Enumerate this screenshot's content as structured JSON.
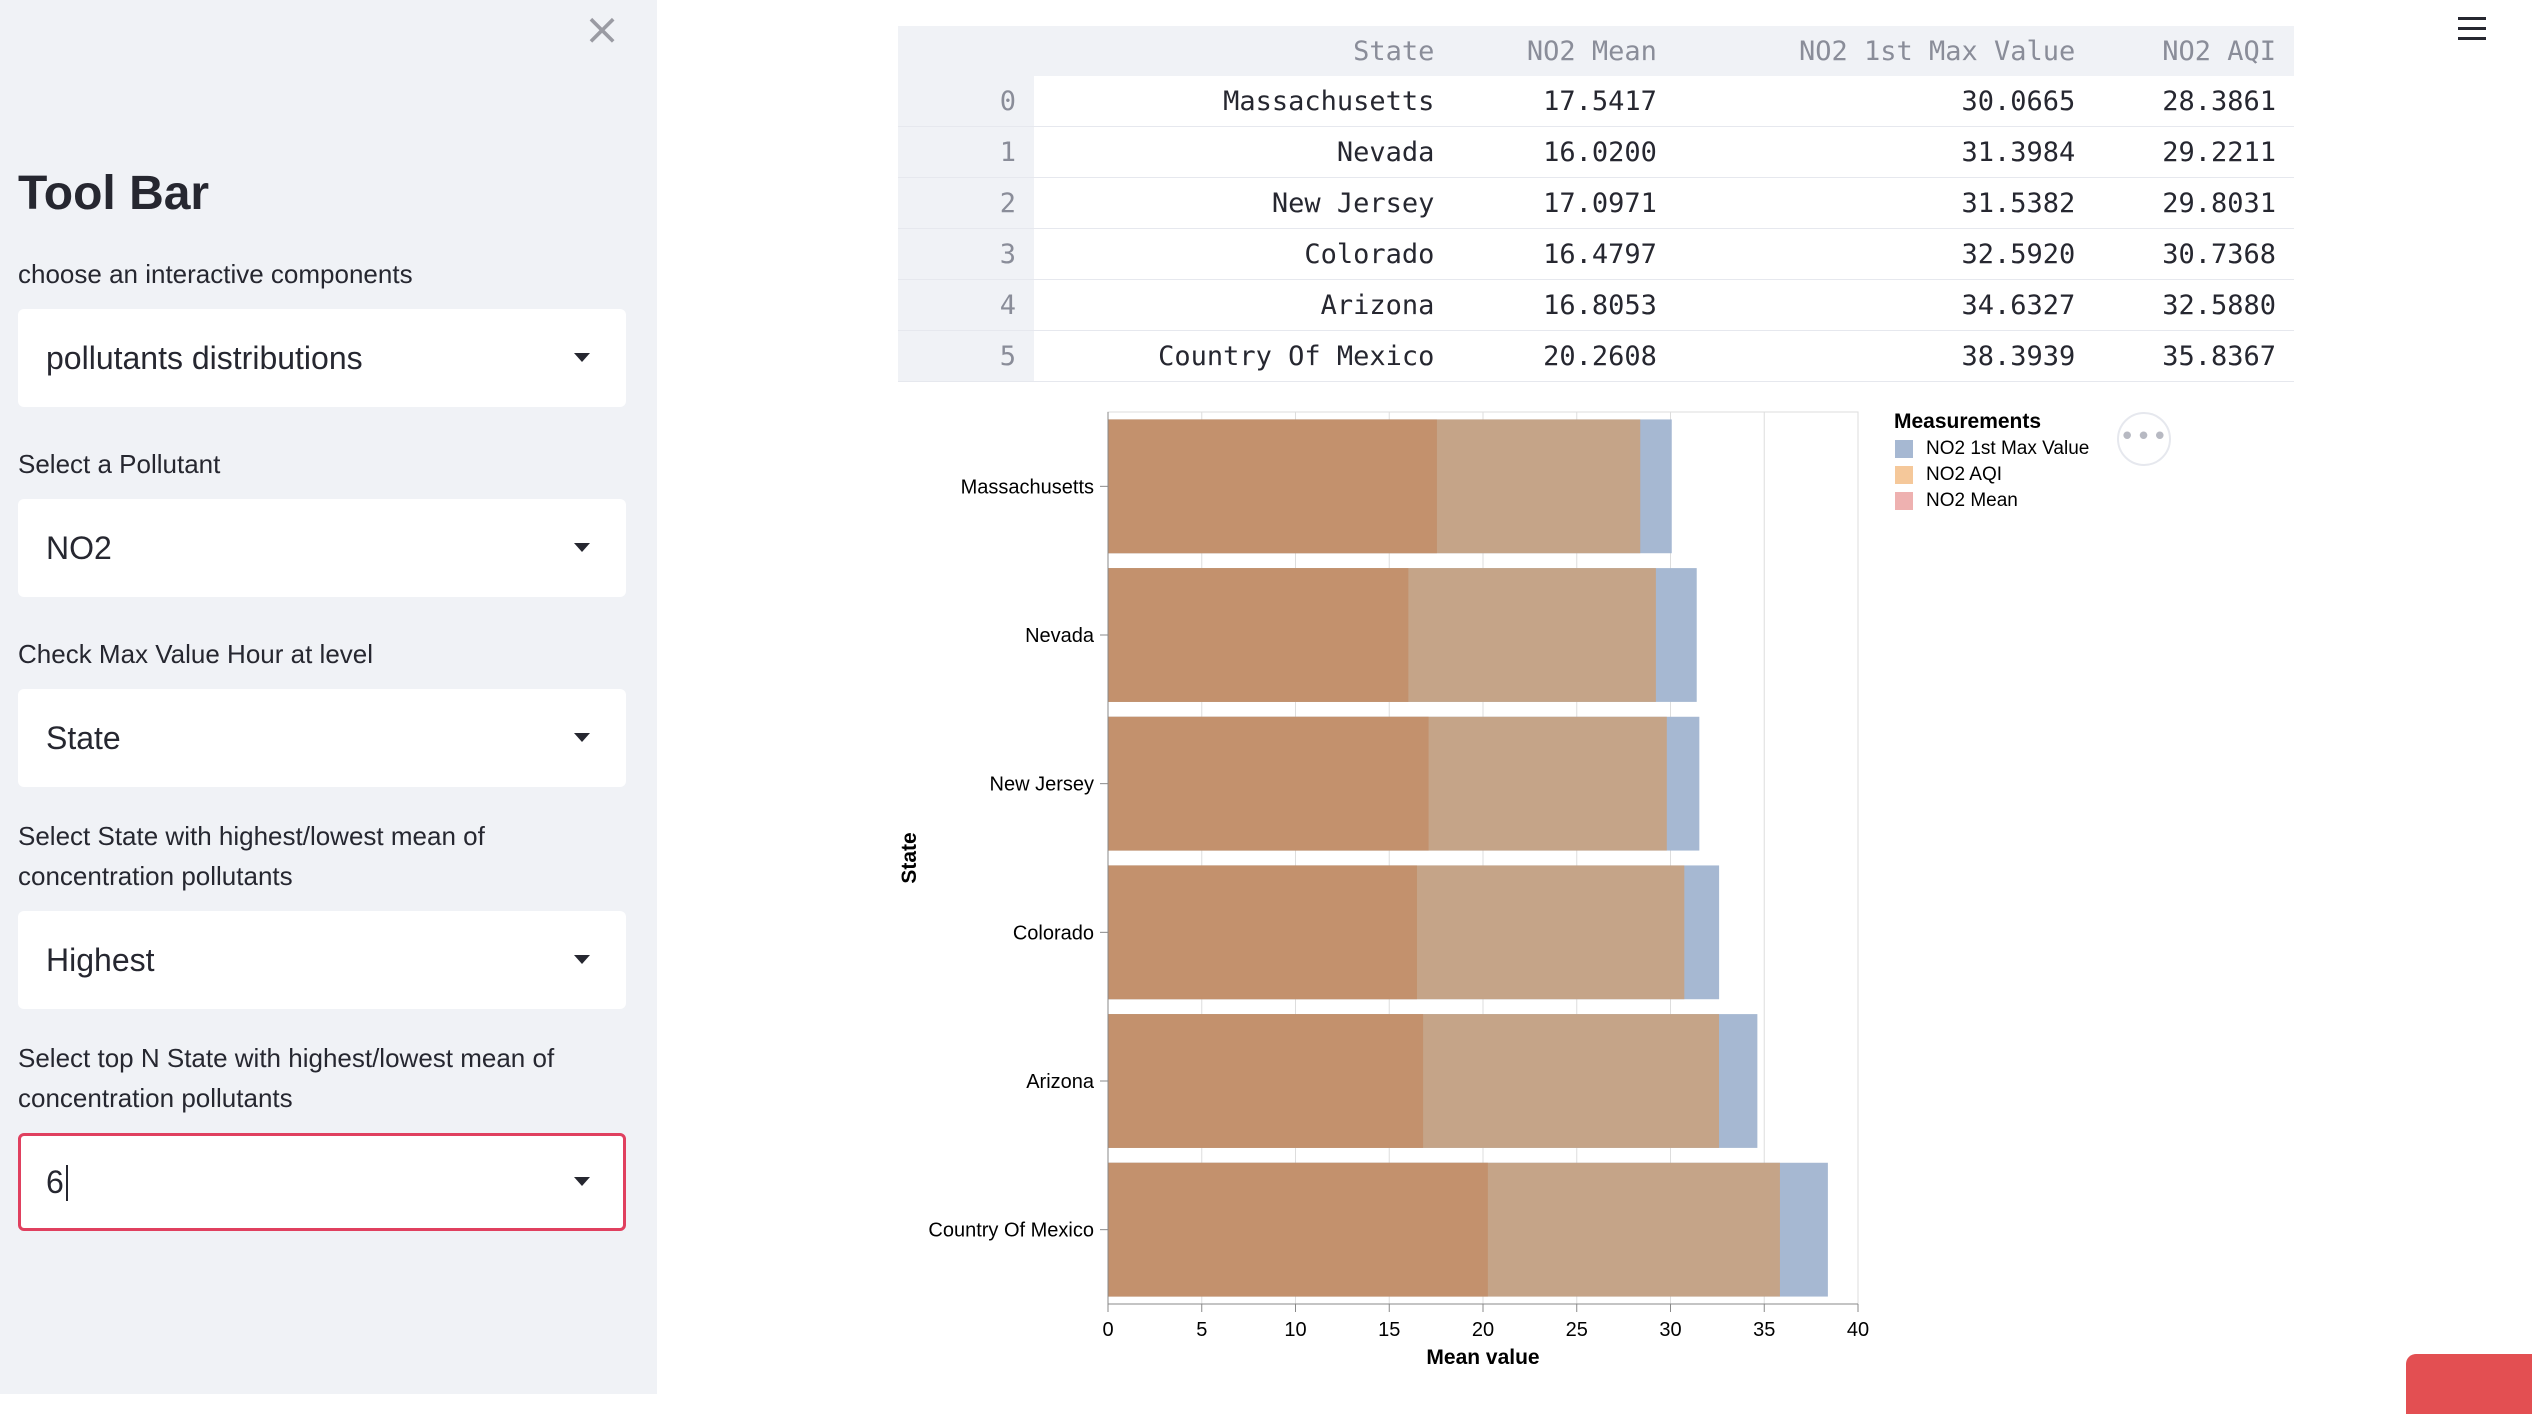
{
  "sidebar": {
    "close_icon": "×",
    "title": "Tool Bar",
    "controls": [
      {
        "label": "choose an interactive components",
        "value": "pollutants distributions"
      },
      {
        "label": "Select a Pollutant",
        "value": "NO2"
      },
      {
        "label": "Check Max Value Hour at level",
        "value": "State"
      },
      {
        "label": "Select State with highest/lowest mean of concentration pollutants",
        "value": "Highest"
      },
      {
        "label": "Select top N State with highest/lowest mean of concentration pollutants",
        "value": "6"
      }
    ]
  },
  "table": {
    "headers": [
      "State",
      "NO2 Mean",
      "NO2 1st Max Value",
      "NO2 AQI"
    ],
    "rows": [
      {
        "index": "0",
        "cells": [
          "Massachusetts",
          "17.5417",
          "30.0665",
          "28.3861"
        ]
      },
      {
        "index": "1",
        "cells": [
          "Nevada",
          "16.0200",
          "31.3984",
          "29.2211"
        ]
      },
      {
        "index": "2",
        "cells": [
          "New Jersey",
          "17.0971",
          "31.5382",
          "29.8031"
        ]
      },
      {
        "index": "3",
        "cells": [
          "Colorado",
          "16.4797",
          "32.5920",
          "30.7368"
        ]
      },
      {
        "index": "4",
        "cells": [
          "Arizona",
          "16.8053",
          "34.6327",
          "32.5880"
        ]
      },
      {
        "index": "5",
        "cells": [
          "Country Of Mexico",
          "20.2608",
          "38.3939",
          "35.8367"
        ]
      }
    ]
  },
  "chart_data": {
    "type": "bar",
    "orientation": "horizontal",
    "stacked": false,
    "categories": [
      "Massachusetts",
      "Nevada",
      "New Jersey",
      "Colorado",
      "Arizona",
      "Country Of Mexico"
    ],
    "series": [
      {
        "name": "NO2 1st Max Value",
        "color": "#a6b8d2",
        "values": [
          30.0665,
          31.3984,
          31.5382,
          32.592,
          34.6327,
          38.3939
        ]
      },
      {
        "name": "NO2 AQI",
        "color": "#caa07b",
        "values": [
          28.3861,
          29.2211,
          29.8031,
          30.7368,
          32.588,
          35.8367
        ]
      },
      {
        "name": "NO2 Mean",
        "color": "#c28e68",
        "values": [
          17.5417,
          16.02,
          17.0971,
          16.4797,
          16.8053,
          20.2608
        ]
      }
    ],
    "legend": {
      "title": "Measurements",
      "position": "top-right",
      "items": [
        {
          "label": "NO2 1st Max Value",
          "color": "#a6b8d2"
        },
        {
          "label": "NO2 AQI",
          "color": "#f5c89a"
        },
        {
          "label": "NO2 Mean",
          "color": "#eeb1b0"
        }
      ]
    },
    "xlabel": "Mean value",
    "ylabel": "State",
    "xlim": [
      0,
      40
    ],
    "xticks": [
      "0",
      "5",
      "10",
      "15",
      "20",
      "25",
      "30",
      "35",
      "40"
    ],
    "grid": true
  },
  "icons": {
    "menu": "hamburger-icon",
    "more": "more-options-icon",
    "close": "close-icon",
    "dropdown": "chevron-down-icon"
  },
  "colors": {
    "sidebar_bg": "#f0f2f6",
    "focus_border": "#e0405f",
    "badge": "#e34f52"
  }
}
